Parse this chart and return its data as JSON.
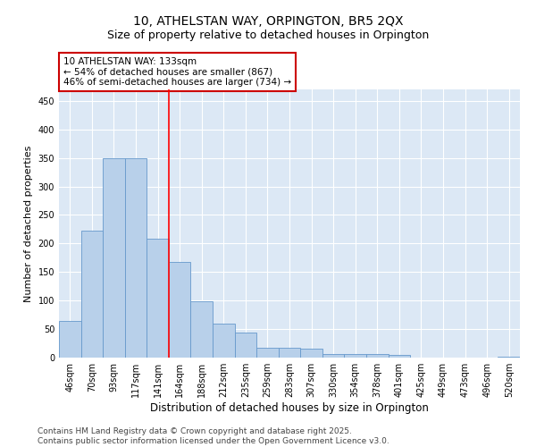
{
  "title1": "10, ATHELSTAN WAY, ORPINGTON, BR5 2QX",
  "title2": "Size of property relative to detached houses in Orpington",
  "xlabel": "Distribution of detached houses by size in Orpington",
  "ylabel": "Number of detached properties",
  "categories": [
    "46sqm",
    "70sqm",
    "93sqm",
    "117sqm",
    "141sqm",
    "164sqm",
    "188sqm",
    "212sqm",
    "235sqm",
    "259sqm",
    "283sqm",
    "307sqm",
    "330sqm",
    "354sqm",
    "378sqm",
    "401sqm",
    "425sqm",
    "449sqm",
    "473sqm",
    "496sqm",
    "520sqm"
  ],
  "values": [
    65,
    222,
    350,
    350,
    208,
    168,
    98,
    60,
    44,
    18,
    17,
    15,
    7,
    6,
    6,
    4,
    0,
    0,
    0,
    0,
    1
  ],
  "bar_color": "#b8d0ea",
  "bar_edgecolor": "#6699cc",
  "vline_color": "red",
  "vline_x": 4.5,
  "annotation_text": "10 ATHELSTAN WAY: 133sqm\n← 54% of detached houses are smaller (867)\n46% of semi-detached houses are larger (734) →",
  "annotation_box_facecolor": "white",
  "annotation_box_edgecolor": "#cc0000",
  "ylim": [
    0,
    470
  ],
  "yticks": [
    0,
    50,
    100,
    150,
    200,
    250,
    300,
    350,
    400,
    450
  ],
  "bg_color": "#dce8f5",
  "grid_color": "white",
  "footer": "Contains HM Land Registry data © Crown copyright and database right 2025.\nContains public sector information licensed under the Open Government Licence v3.0.",
  "title1_fontsize": 10,
  "title2_fontsize": 9,
  "xlabel_fontsize": 8.5,
  "ylabel_fontsize": 8,
  "tick_fontsize": 7,
  "annotation_fontsize": 7.5,
  "footer_fontsize": 6.5
}
